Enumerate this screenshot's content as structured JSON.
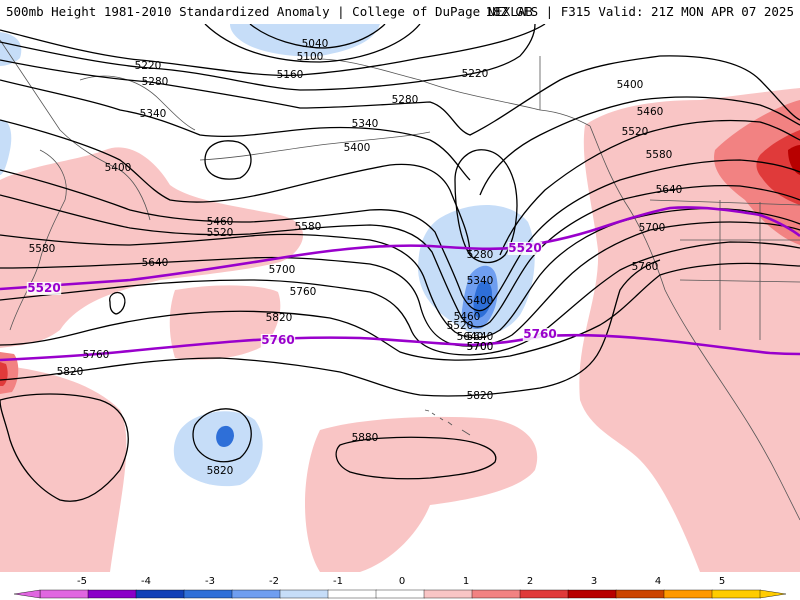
{
  "header": {
    "left": "500mb Height 1981-2010 Standardized Anomaly | College of DuPage NEXLAB",
    "right": "18Z GFS | F315 Valid: 21Z MON APR 07 2025"
  },
  "colors": {
    "contour": "#000000",
    "highlight_contour": "#9900cc",
    "coastline": "#555555",
    "background": "#ffffff"
  },
  "anomaly_scale": {
    "ticks": [
      "-5",
      "-4",
      "-3",
      "-2",
      "-1",
      "0",
      "1",
      "2",
      "3",
      "4",
      "5"
    ],
    "colors": [
      "#e066e0",
      "#8a00c8",
      "#1040b8",
      "#2e6fd8",
      "#6f9ef0",
      "#c6ddf8",
      "#ffffff",
      "#ffffff",
      "#f9c5c5",
      "#f28282",
      "#e03a3a",
      "#b80000",
      "#cc4400",
      "#ff9900",
      "#ffcc00"
    ]
  },
  "contour_labels": [
    {
      "id": "l5040",
      "text": "5040"
    },
    {
      "id": "l5100",
      "text": "5100"
    },
    {
      "id": "l5220a",
      "text": "5220"
    },
    {
      "id": "l5280a",
      "text": "5280"
    },
    {
      "id": "l5160",
      "text": "5160"
    },
    {
      "id": "l5220b",
      "text": "5220"
    },
    {
      "id": "l5280b",
      "text": "5280"
    },
    {
      "id": "l5340a",
      "text": "5340"
    },
    {
      "id": "l5340b",
      "text": "5340"
    },
    {
      "id": "l5400a",
      "text": "5400"
    },
    {
      "id": "l5400b",
      "text": "5400"
    },
    {
      "id": "l5400c",
      "text": "5400"
    },
    {
      "id": "l5460a",
      "text": "5460"
    },
    {
      "id": "l5520a",
      "text": "5520"
    },
    {
      "id": "l5520b",
      "text": "5520"
    },
    {
      "id": "l5580a",
      "text": "5580"
    },
    {
      "id": "l5580b",
      "text": "5580"
    },
    {
      "id": "l5580c",
      "text": "5580"
    },
    {
      "id": "l5640a",
      "text": "5640"
    },
    {
      "id": "l5640b",
      "text": "5640"
    },
    {
      "id": "l5640c",
      "text": "5640"
    },
    {
      "id": "l5700a",
      "text": "5700"
    },
    {
      "id": "l5700b",
      "text": "5700"
    },
    {
      "id": "l5700c",
      "text": "5700"
    },
    {
      "id": "l5760a",
      "text": "5760"
    },
    {
      "id": "l5760b",
      "text": "5760"
    },
    {
      "id": "l5760c",
      "text": "5760"
    },
    {
      "id": "l5820a",
      "text": "5820"
    },
    {
      "id": "l5820b",
      "text": "5820"
    },
    {
      "id": "l5820c",
      "text": "5820"
    },
    {
      "id": "l5820d",
      "text": "5820"
    },
    {
      "id": "l5880",
      "text": "5880"
    },
    {
      "id": "l5280c",
      "text": "5280"
    },
    {
      "id": "l5340c",
      "text": "5340"
    },
    {
      "id": "l5400d",
      "text": "5400"
    },
    {
      "id": "l5460b",
      "text": "5460"
    },
    {
      "id": "l5520c",
      "text": "5520"
    },
    {
      "id": "l5640d",
      "text": "5640"
    },
    {
      "id": "l5700d",
      "text": "5700"
    },
    {
      "id": "l5460c",
      "text": "5460"
    }
  ],
  "highlight_labels": [
    {
      "id": "p5520a",
      "text": "5520"
    },
    {
      "id": "p5520b",
      "text": "5520"
    },
    {
      "id": "p5760a",
      "text": "5760"
    },
    {
      "id": "p5760b",
      "text": "5760"
    }
  ]
}
